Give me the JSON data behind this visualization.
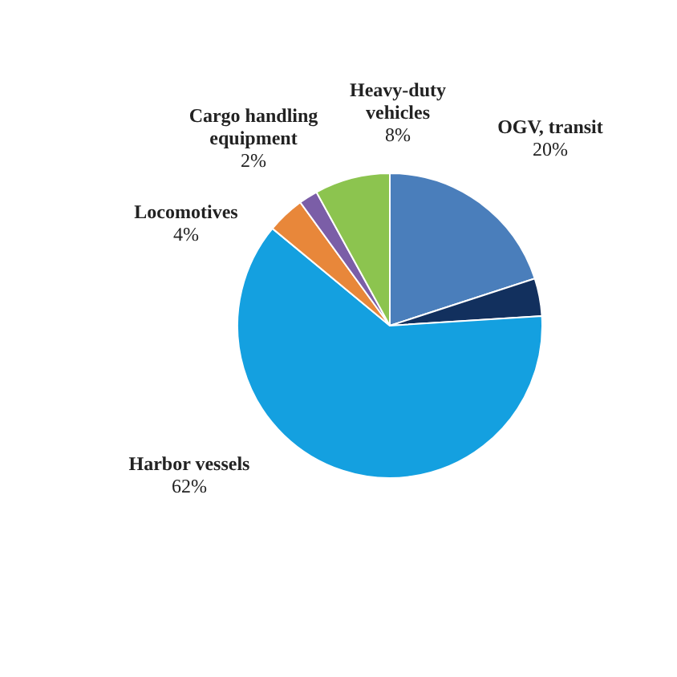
{
  "chart_data": {
    "type": "pie",
    "categories": [
      "OGV, transit",
      null,
      "Harbor vessels",
      "Locomotives",
      "Cargo handling equipment",
      "Heavy-duty vehicles"
    ],
    "values": [
      20,
      4,
      62,
      4,
      2,
      8
    ],
    "colors": [
      "#4a7ebb",
      "#12305e",
      "#14a0e0",
      "#e8873a",
      "#7b5ea7",
      "#8cc44f"
    ],
    "value_labels": [
      "20%",
      null,
      "62%",
      "4%",
      "2%",
      "8%"
    ],
    "legend": false
  }
}
